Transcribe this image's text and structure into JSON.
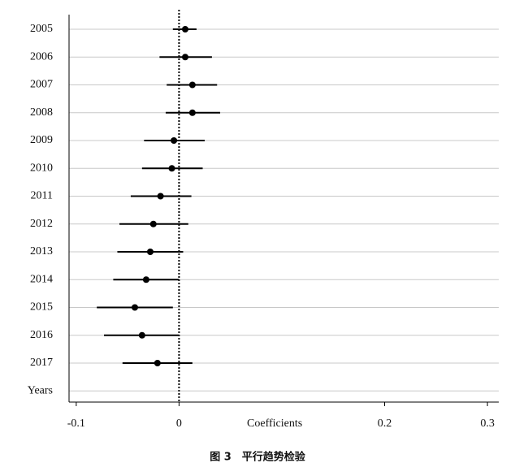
{
  "chart_data": {
    "type": "coefplot",
    "categories": [
      "2005",
      "2006",
      "2007",
      "2008",
      "2009",
      "2010",
      "2011",
      "2012",
      "2013",
      "2014",
      "2015",
      "2016",
      "2017",
      "Years"
    ],
    "values": [
      0.006,
      0.006,
      0.013,
      0.013,
      -0.005,
      -0.007,
      -0.018,
      -0.025,
      -0.028,
      -0.032,
      -0.043,
      -0.036,
      -0.021,
      null
    ],
    "lower": [
      -0.006,
      -0.019,
      -0.012,
      -0.013,
      -0.034,
      -0.036,
      -0.047,
      -0.058,
      -0.06,
      -0.064,
      -0.08,
      -0.073,
      -0.055,
      null
    ],
    "upper": [
      0.017,
      0.032,
      0.037,
      0.04,
      0.025,
      0.023,
      0.012,
      0.009,
      0.004,
      0.0,
      -0.006,
      0.0,
      0.013,
      null
    ],
    "color": "#000000",
    "xlim": [
      -0.107,
      0.311
    ],
    "xticks": [
      -0.1,
      0,
      0.2,
      0.3
    ],
    "xline": 0,
    "xlabel": "Coefficients",
    "caption": "图 3　平行趋势检验"
  }
}
